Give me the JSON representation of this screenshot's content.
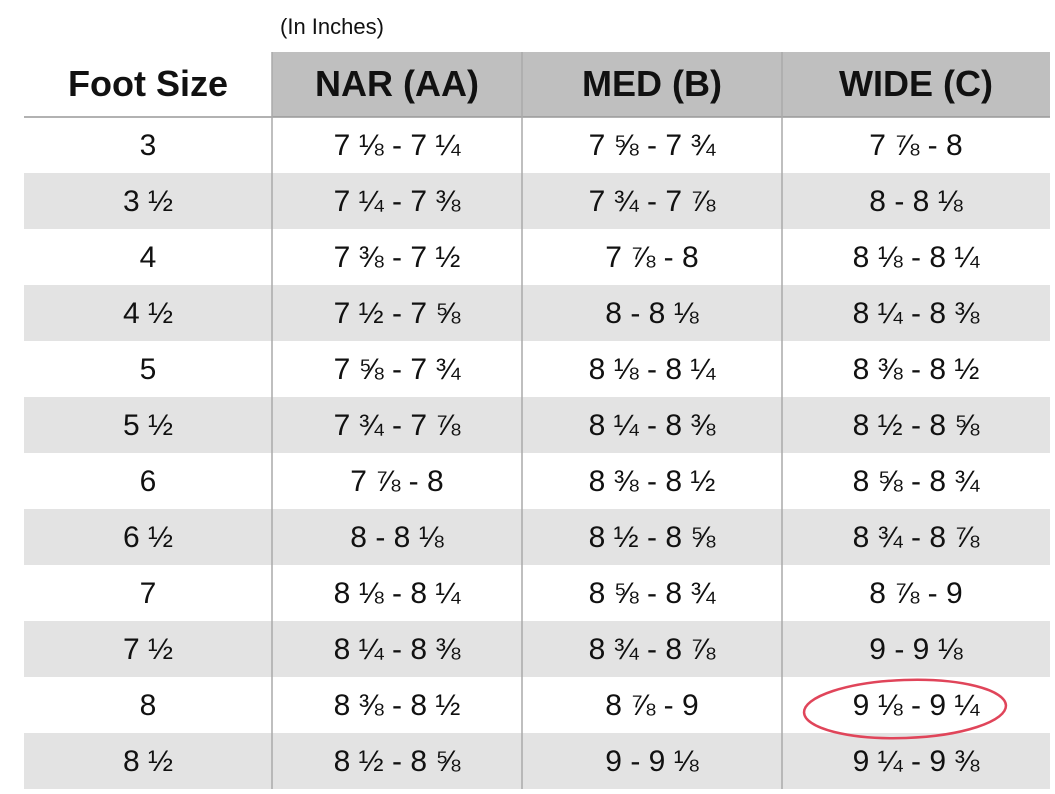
{
  "header": {
    "note": "(In Inches)"
  },
  "table": {
    "columns": [
      "Foot Size",
      "NAR (AA)",
      "MED (B)",
      "WIDE (C)"
    ],
    "rows": [
      [
        "3",
        "7 ⅛ - 7 ¼",
        "7 ⅝ - 7 ¾",
        "7 ⅞ - 8"
      ],
      [
        "3 ½",
        "7 ¼ - 7 ⅜",
        "7 ¾ - 7 ⅞",
        "8 - 8 ⅛"
      ],
      [
        "4",
        "7 ⅜ - 7 ½",
        "7 ⅞ - 8",
        "8 ⅛ - 8 ¼"
      ],
      [
        "4 ½",
        "7 ½ - 7 ⅝",
        "8 - 8 ⅛",
        "8 ¼ - 8 ⅜"
      ],
      [
        "5",
        "7 ⅝ - 7 ¾",
        "8 ⅛ - 8 ¼",
        "8 ⅜ - 8 ½"
      ],
      [
        "5 ½",
        "7 ¾ - 7 ⅞",
        "8 ¼ - 8 ⅜",
        "8 ½ - 8 ⅝"
      ],
      [
        "6",
        "7 ⅞ - 8",
        "8 ⅜ - 8 ½",
        "8 ⅝ - 8 ¾"
      ],
      [
        "6 ½",
        "8 - 8 ⅛",
        "8 ½ - 8 ⅝",
        "8 ¾ - 8 ⅞"
      ],
      [
        "7",
        "8 ⅛ - 8 ¼",
        "8 ⅝ - 8 ¾",
        "8 ⅞ - 9"
      ],
      [
        "7 ½",
        "8 ¼ - 8 ⅜",
        "8 ¾ - 8 ⅞",
        "9 - 9 ⅛"
      ],
      [
        "8",
        "8 ⅜ - 8 ½",
        "8 ⅞ - 9",
        "9 ⅛ - 9 ¼"
      ],
      [
        "8 ½",
        "8 ½ - 8 ⅝",
        "9 - 9 ⅛",
        "9 ¼ - 9 ⅜"
      ]
    ]
  }
}
